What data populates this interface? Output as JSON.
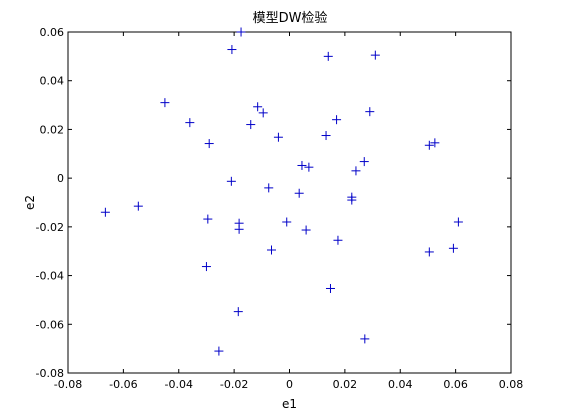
{
  "chart_data": {
    "type": "scatter",
    "title": "模型DW检验",
    "xlabel": "e1",
    "ylabel": "e2",
    "xlim": [
      -0.08,
      0.08
    ],
    "ylim": [
      -0.08,
      0.06
    ],
    "xticks": [
      -0.08,
      -0.06,
      -0.04,
      -0.02,
      0,
      0.02,
      0.04,
      0.06,
      0.08
    ],
    "xtick_labels": [
      "-0.08",
      "-0.06",
      "-0.04",
      "-0.02",
      "0",
      "0.02",
      "0.04",
      "0.06",
      "0.08"
    ],
    "yticks": [
      -0.08,
      -0.06,
      -0.04,
      -0.02,
      0,
      0.02,
      0.04,
      0.06
    ],
    "ytick_labels": [
      "-0.08",
      "-0.06",
      "-0.04",
      "-0.02",
      "0",
      "0.02",
      "0.04",
      "0.06"
    ],
    "grid": false,
    "marker": "+",
    "marker_color": "#0000c8",
    "points": [
      {
        "x": -0.0665,
        "y": -0.014
      },
      {
        "x": -0.0546,
        "y": -0.0115
      },
      {
        "x": -0.045,
        "y": 0.031
      },
      {
        "x": -0.036,
        "y": 0.0228
      },
      {
        "x": -0.029,
        "y": 0.0142
      },
      {
        "x": -0.0295,
        "y": -0.0168
      },
      {
        "x": -0.03,
        "y": -0.0363
      },
      {
        "x": -0.0255,
        "y": -0.071
      },
      {
        "x": -0.0208,
        "y": 0.0528
      },
      {
        "x": -0.0175,
        "y": 0.06
      },
      {
        "x": -0.021,
        "y": -0.0013
      },
      {
        "x": -0.0182,
        "y": -0.0185
      },
      {
        "x": -0.0182,
        "y": -0.021
      },
      {
        "x": -0.0185,
        "y": -0.0548
      },
      {
        "x": -0.014,
        "y": 0.022
      },
      {
        "x": -0.0115,
        "y": 0.0293
      },
      {
        "x": -0.0095,
        "y": 0.0268
      },
      {
        "x": -0.0075,
        "y": -0.004
      },
      {
        "x": -0.0065,
        "y": -0.0295
      },
      {
        "x": -0.004,
        "y": 0.0168
      },
      {
        "x": -0.001,
        "y": -0.018
      },
      {
        "x": 0.0035,
        "y": -0.0062
      },
      {
        "x": 0.0045,
        "y": 0.0052
      },
      {
        "x": 0.006,
        "y": -0.0213
      },
      {
        "x": 0.007,
        "y": 0.0045
      },
      {
        "x": 0.0132,
        "y": 0.0175
      },
      {
        "x": 0.014,
        "y": 0.05
      },
      {
        "x": 0.0148,
        "y": -0.0453
      },
      {
        "x": 0.017,
        "y": 0.024
      },
      {
        "x": 0.0175,
        "y": -0.0255
      },
      {
        "x": 0.0225,
        "y": -0.009
      },
      {
        "x": 0.0225,
        "y": -0.0078
      },
      {
        "x": 0.024,
        "y": 0.003
      },
      {
        "x": 0.027,
        "y": 0.0068
      },
      {
        "x": 0.0272,
        "y": -0.066
      },
      {
        "x": 0.029,
        "y": 0.0273
      },
      {
        "x": 0.031,
        "y": 0.0505
      },
      {
        "x": 0.0505,
        "y": 0.0135
      },
      {
        "x": 0.0525,
        "y": 0.0145
      },
      {
        "x": 0.0505,
        "y": -0.0303
      },
      {
        "x": 0.0592,
        "y": -0.0288
      },
      {
        "x": 0.061,
        "y": -0.018
      }
    ]
  }
}
